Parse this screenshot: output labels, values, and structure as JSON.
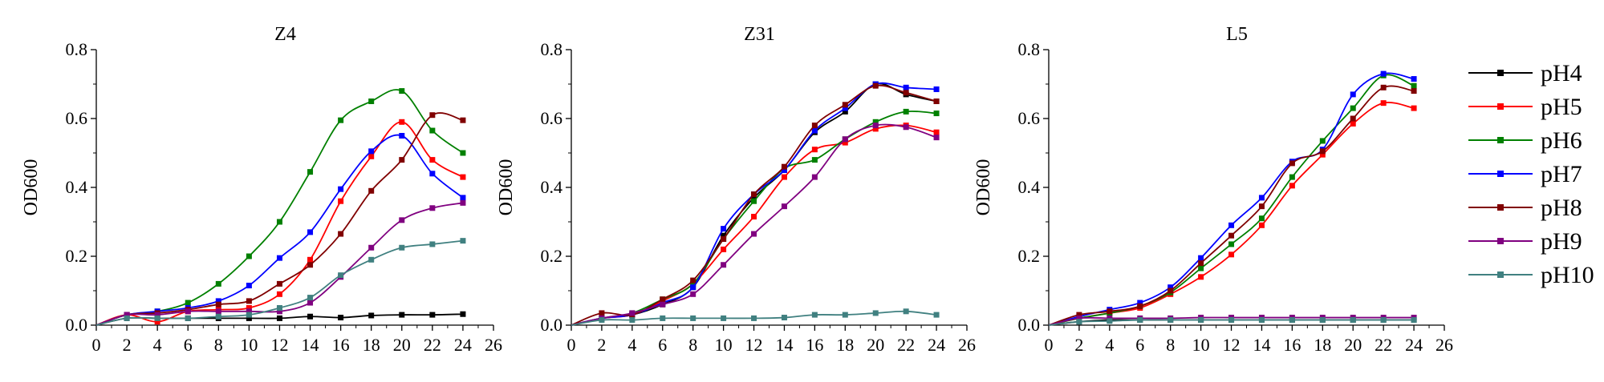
{
  "chart_data": [
    {
      "type": "line",
      "title": "Z4",
      "ylabel": "OD600",
      "xlabel": "",
      "xlim": [
        0,
        26
      ],
      "ylim": [
        0.0,
        0.8
      ],
      "x_ticks": [
        0,
        2,
        4,
        6,
        8,
        10,
        12,
        14,
        16,
        18,
        20,
        22,
        24,
        26
      ],
      "y_ticks": [
        "0.0",
        "0.2",
        "0.4",
        "0.6",
        "0.8"
      ],
      "x": [
        2,
        4,
        6,
        8,
        10,
        12,
        14,
        16,
        18,
        20,
        22,
        24
      ],
      "series": [
        {
          "name": "pH4",
          "values": [
            0.02,
            0.02,
            0.02,
            0.02,
            0.02,
            0.02,
            0.025,
            0.022,
            0.028,
            0.03,
            0.03,
            0.032
          ]
        },
        {
          "name": "pH5",
          "values": [
            0.03,
            0.01,
            0.04,
            0.045,
            0.05,
            0.09,
            0.19,
            0.36,
            0.49,
            0.59,
            0.48,
            0.43
          ]
        },
        {
          "name": "pH6",
          "values": [
            0.03,
            0.04,
            0.065,
            0.12,
            0.2,
            0.3,
            0.445,
            0.595,
            0.65,
            0.68,
            0.565,
            0.5
          ]
        },
        {
          "name": "pH7",
          "values": [
            0.03,
            0.04,
            0.05,
            0.07,
            0.115,
            0.195,
            0.27,
            0.395,
            0.505,
            0.55,
            0.44,
            0.37
          ]
        },
        {
          "name": "pH8",
          "values": [
            0.03,
            0.035,
            0.045,
            0.06,
            0.07,
            0.12,
            0.175,
            0.265,
            0.39,
            0.48,
            0.61,
            0.595
          ]
        },
        {
          "name": "pH9",
          "values": [
            0.03,
            0.03,
            0.04,
            0.04,
            0.04,
            0.04,
            0.065,
            0.14,
            0.225,
            0.305,
            0.34,
            0.355
          ]
        },
        {
          "name": "pH10",
          "values": [
            0.02,
            0.02,
            0.02,
            0.025,
            0.03,
            0.05,
            0.08,
            0.145,
            0.19,
            0.225,
            0.235,
            0.245
          ]
        }
      ]
    },
    {
      "type": "line",
      "title": "Z31",
      "ylabel": "OD600",
      "xlabel": "",
      "xlim": [
        0,
        26
      ],
      "ylim": [
        0.0,
        0.8
      ],
      "x_ticks": [
        0,
        2,
        4,
        6,
        8,
        10,
        12,
        14,
        16,
        18,
        20,
        22,
        24,
        26
      ],
      "y_ticks": [
        "0.0",
        "0.2",
        "0.4",
        "0.6",
        "0.8"
      ],
      "x": [
        2,
        4,
        6,
        8,
        10,
        12,
        14,
        16,
        18,
        20,
        22,
        24
      ],
      "series": [
        {
          "name": "pH4",
          "values": [
            0.02,
            0.03,
            0.06,
            0.11,
            0.26,
            0.37,
            0.45,
            0.56,
            0.62,
            0.7,
            0.67,
            0.65
          ]
        },
        {
          "name": "pH5",
          "values": [
            0.02,
            0.03,
            0.07,
            0.12,
            0.22,
            0.315,
            0.43,
            0.51,
            0.53,
            0.57,
            0.58,
            0.56
          ]
        },
        {
          "name": "pH6",
          "values": [
            0.02,
            0.035,
            0.075,
            0.12,
            0.25,
            0.36,
            0.455,
            0.48,
            0.54,
            0.59,
            0.62,
            0.615
          ]
        },
        {
          "name": "pH7",
          "values": [
            0.02,
            0.03,
            0.065,
            0.11,
            0.28,
            0.38,
            0.45,
            0.565,
            0.63,
            0.7,
            0.69,
            0.685
          ]
        },
        {
          "name": "pH8",
          "values": [
            0.035,
            0.03,
            0.075,
            0.13,
            0.25,
            0.38,
            0.46,
            0.58,
            0.64,
            0.695,
            0.675,
            0.65
          ]
        },
        {
          "name": "pH9",
          "values": [
            0.02,
            0.035,
            0.06,
            0.09,
            0.175,
            0.265,
            0.345,
            0.43,
            0.54,
            0.58,
            0.575,
            0.545
          ]
        },
        {
          "name": "pH10",
          "values": [
            0.015,
            0.015,
            0.02,
            0.02,
            0.02,
            0.02,
            0.022,
            0.03,
            0.03,
            0.035,
            0.04,
            0.03
          ]
        }
      ]
    },
    {
      "type": "line",
      "title": "L5",
      "ylabel": "OD600",
      "xlabel": "",
      "xlim": [
        0,
        26
      ],
      "ylim": [
        0.0,
        0.8
      ],
      "x_ticks": [
        0,
        2,
        4,
        6,
        8,
        10,
        12,
        14,
        16,
        18,
        20,
        22,
        24,
        26
      ],
      "y_ticks": [
        "0.0",
        "0.2",
        "0.4",
        "0.6",
        "0.8"
      ],
      "x": [
        2,
        4,
        6,
        8,
        10,
        12,
        14,
        16,
        18,
        20,
        22,
        24
      ],
      "series": [
        {
          "name": "pH4",
          "values": [
            0.01,
            0.015,
            0.015,
            0.015,
            0.015,
            0.015,
            0.015,
            0.015,
            0.015,
            0.015,
            0.015,
            0.015
          ]
        },
        {
          "name": "pH5",
          "values": [
            0.02,
            0.035,
            0.05,
            0.09,
            0.14,
            0.205,
            0.29,
            0.405,
            0.495,
            0.585,
            0.645,
            0.63
          ]
        },
        {
          "name": "pH6",
          "values": [
            0.02,
            0.035,
            0.055,
            0.095,
            0.165,
            0.235,
            0.31,
            0.43,
            0.535,
            0.63,
            0.725,
            0.695
          ]
        },
        {
          "name": "pH7",
          "values": [
            0.025,
            0.045,
            0.065,
            0.11,
            0.195,
            0.29,
            0.37,
            0.475,
            0.51,
            0.67,
            0.73,
            0.715
          ]
        },
        {
          "name": "pH8",
          "values": [
            0.03,
            0.04,
            0.055,
            0.1,
            0.18,
            0.26,
            0.345,
            0.47,
            0.505,
            0.6,
            0.69,
            0.68
          ]
        },
        {
          "name": "pH9",
          "values": [
            0.02,
            0.02,
            0.02,
            0.02,
            0.022,
            0.022,
            0.022,
            0.022,
            0.022,
            0.022,
            0.022,
            0.022
          ]
        },
        {
          "name": "pH10",
          "values": [
            0.01,
            0.012,
            0.015,
            0.015,
            0.015,
            0.015,
            0.015,
            0.015,
            0.015,
            0.015,
            0.015,
            0.015
          ]
        }
      ]
    }
  ],
  "legend": {
    "placement": "right",
    "entries": [
      {
        "label": "pH4",
        "color": "#000000"
      },
      {
        "label": "pH5",
        "color": "#ff0000"
      },
      {
        "label": "pH6",
        "color": "#008000"
      },
      {
        "label": "pH7",
        "color": "#0000ff"
      },
      {
        "label": "pH8",
        "color": "#800000"
      },
      {
        "label": "pH9",
        "color": "#800080"
      },
      {
        "label": "pH10",
        "color": "#408080"
      }
    ]
  },
  "colors": {
    "pH4": "#000000",
    "pH5": "#ff0000",
    "pH6": "#008000",
    "pH7": "#0000ff",
    "pH8": "#800000",
    "pH9": "#800080",
    "pH10": "#408080",
    "axis": "#000000"
  },
  "marker": "square",
  "grid": false
}
